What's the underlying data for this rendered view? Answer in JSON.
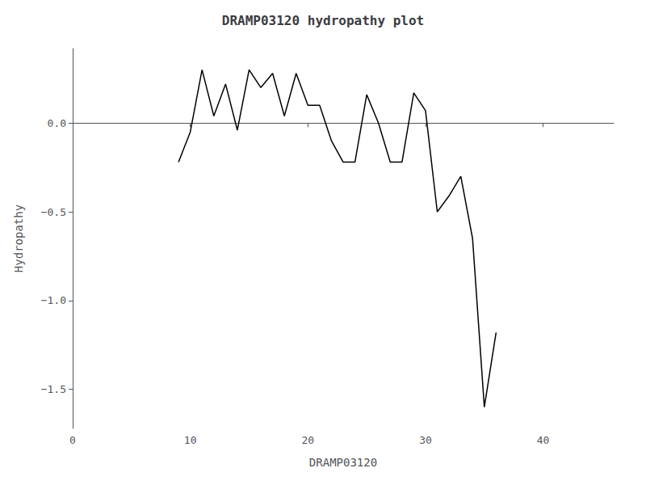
{
  "chart_data": {
    "type": "line",
    "title": "DRAMP03120 hydropathy plot",
    "xlabel": "DRAMP03120",
    "ylabel": "Hydropathy",
    "x": [
      9,
      10,
      11,
      12,
      13,
      14,
      15,
      16,
      17,
      18,
      19,
      20,
      21,
      22,
      23,
      24,
      25,
      26,
      27,
      28,
      29,
      30,
      31,
      32,
      33,
      34,
      35,
      36
    ],
    "values": [
      -0.22,
      -0.05,
      0.3,
      0.04,
      0.22,
      -0.04,
      0.3,
      0.2,
      0.28,
      0.04,
      0.28,
      0.1,
      0.1,
      -0.1,
      -0.22,
      -0.22,
      0.16,
      0.0,
      -0.22,
      -0.22,
      0.17,
      0.07,
      -0.5,
      -0.41,
      -0.3,
      -0.65,
      -1.6,
      -1.18
    ],
    "color": "#000000",
    "xlim": [
      0,
      46
    ],
    "xticks": [
      0,
      10,
      20,
      30,
      40
    ],
    "ylim": [
      -1.72,
      0.42
    ],
    "yticks": [
      {
        "value": 0.0,
        "label": "0.0"
      },
      {
        "value": -0.5,
        "label": "−0.5"
      },
      {
        "value": -1.0,
        "label": "−1.0"
      },
      {
        "value": -1.5,
        "label": "−1.5"
      }
    ],
    "grid": false
  }
}
